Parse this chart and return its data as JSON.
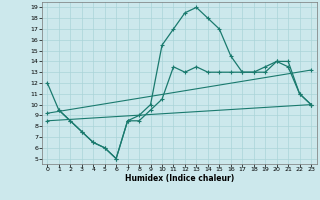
{
  "xlabel": "Humidex (Indice chaleur)",
  "bg_color": "#cce8ec",
  "line_color": "#1a7a6e",
  "grid_color": "#aad4d8",
  "xlim": [
    -0.5,
    23.5
  ],
  "ylim": [
    4.5,
    19.5
  ],
  "xticks": [
    0,
    1,
    2,
    3,
    4,
    5,
    6,
    7,
    8,
    9,
    10,
    11,
    12,
    13,
    14,
    15,
    16,
    17,
    18,
    19,
    20,
    21,
    22,
    23
  ],
  "yticks": [
    5,
    6,
    7,
    8,
    9,
    10,
    11,
    12,
    13,
    14,
    15,
    16,
    17,
    18,
    19
  ],
  "curve1_x": [
    0,
    1,
    2,
    3,
    4,
    5,
    6,
    7,
    8,
    9,
    10,
    11,
    12,
    13,
    14,
    15,
    16,
    17,
    18,
    19,
    20,
    21,
    22,
    23
  ],
  "curve1_y": [
    12,
    9.5,
    8.5,
    7.5,
    6.5,
    6.0,
    5.0,
    8.5,
    9.0,
    10.0,
    15.5,
    17.0,
    18.5,
    19.0,
    18.0,
    17.0,
    14.5,
    13.0,
    13.0,
    13.5,
    14.0,
    14.0,
    11.0,
    10.0
  ],
  "curve2_x": [
    1,
    2,
    3,
    4,
    5,
    6,
    7,
    8,
    9,
    10,
    11,
    12,
    13,
    14,
    15,
    16,
    17,
    18,
    19,
    20,
    21,
    22,
    23
  ],
  "curve2_y": [
    9.5,
    8.5,
    7.5,
    6.5,
    6.0,
    5.0,
    8.5,
    8.5,
    9.5,
    10.5,
    13.5,
    13.0,
    13.5,
    13.0,
    13.0,
    13.0,
    13.0,
    13.0,
    13.0,
    14.0,
    13.5,
    11.0,
    10.0
  ],
  "line1_x": [
    0,
    23
  ],
  "line1_y": [
    8.5,
    10.0
  ],
  "line2_x": [
    0,
    23
  ],
  "line2_y": [
    9.2,
    13.2
  ]
}
